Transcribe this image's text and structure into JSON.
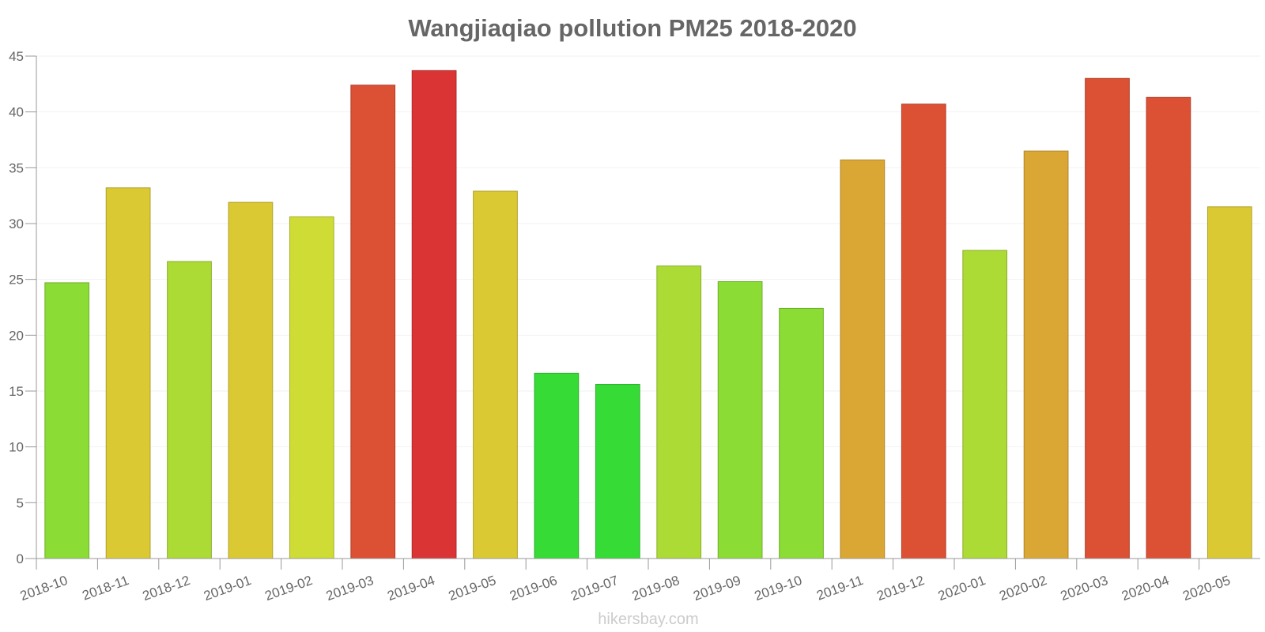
{
  "chart_data": {
    "type": "bar",
    "title": "Wangjiaqiao pollution PM25 2018-2020",
    "xlabel": "",
    "ylabel": "",
    "ylim": [
      0,
      45
    ],
    "yticks": [
      "0",
      "5",
      "10",
      "15",
      "20",
      "25",
      "30",
      "35",
      "40",
      "45"
    ],
    "grid": true,
    "categories": [
      "2018-10",
      "2018-11",
      "2018-12",
      "2019-01",
      "2019-02",
      "2019-03",
      "2019-04",
      "2019-05",
      "2019-06",
      "2019-07",
      "2019-08",
      "2019-09",
      "2019-10",
      "2019-11",
      "2019-12",
      "2020-01",
      "2020-02",
      "2020-03",
      "2020-04",
      "2020-05"
    ],
    "values": [
      24.7,
      33.2,
      26.6,
      31.9,
      30.6,
      42.4,
      43.7,
      32.9,
      16.6,
      15.6,
      26.2,
      24.8,
      22.4,
      35.7,
      40.7,
      27.6,
      36.5,
      43.0,
      41.3,
      31.5
    ],
    "colors": [
      "#8bdc35",
      "#dbc934",
      "#acdb35",
      "#dbc934",
      "#cedc35",
      "#dc5034",
      "#db3434",
      "#dbc934",
      "#36db36",
      "#36db36",
      "#acdb35",
      "#8bdc35",
      "#8bdc35",
      "#dba734",
      "#dc5034",
      "#acdb35",
      "#dba734",
      "#dc5034",
      "#dc5034",
      "#dbc934"
    ]
  },
  "footer": {
    "watermark": "hikersbay.com"
  }
}
